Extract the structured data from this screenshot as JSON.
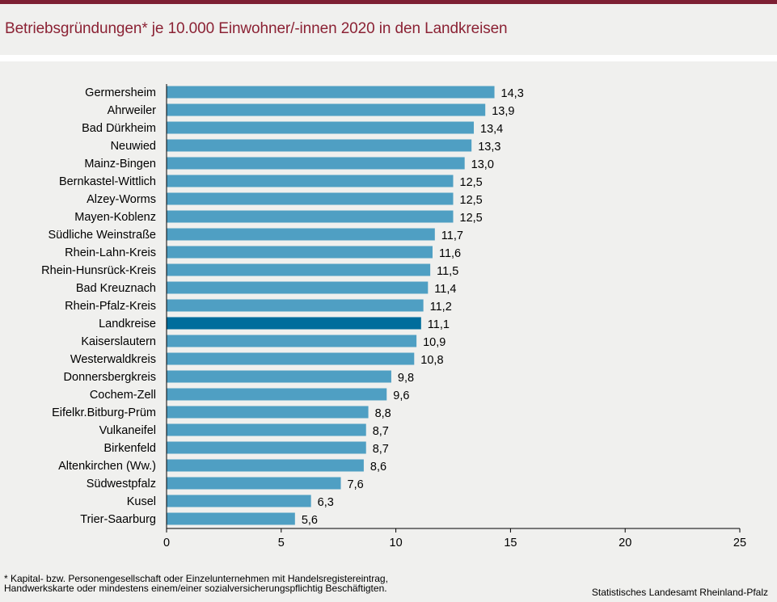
{
  "header": {
    "title": "Betriebsgründungen* je 10.000 Einwohner/-innen 2020  in den Landkreisen"
  },
  "footer": {
    "footnote": "* Kapital- bzw. Personengesellschaft  oder Einzelunternehmen  mit  Handelsregistereintrag,\nHandwerkskarte  oder mindestens einem/einer sozialversicherungspflichtig  Beschäftigten.",
    "source": "Statistisches Landesamt Rheinland-Pfalz"
  },
  "colors": {
    "bar": "#4f9fc3",
    "highlight_bar": "#006d9c",
    "title": "#8b2234",
    "topbar": "#7d1f33"
  },
  "chart_data": {
    "type": "bar",
    "orientation": "horizontal",
    "categories": [
      "Germersheim",
      "Ahrweiler",
      "Bad Dürkheim",
      "Neuwied",
      "Mainz-Bingen",
      "Bernkastel-Wittlich",
      "Alzey-Worms",
      "Mayen-Koblenz",
      "Südliche Weinstraße",
      "Rhein-Lahn-Kreis",
      "Rhein-Hunsrück-Kreis",
      "Bad Kreuznach",
      "Rhein-Pfalz-Kreis",
      "Landkreise",
      "Kaiserslautern",
      "Westerwaldkreis",
      "Donnersbergkreis",
      "Cochem-Zell",
      "Eifelkr.Bitburg-Prüm",
      "Vulkaneifel",
      "Birkenfeld",
      "Altenkirchen (Ww.)",
      "Südwestpfalz",
      "Kusel",
      "Trier-Saarburg"
    ],
    "values": [
      14.3,
      13.9,
      13.4,
      13.3,
      13.0,
      12.5,
      12.5,
      12.5,
      11.7,
      11.6,
      11.5,
      11.4,
      11.2,
      11.1,
      10.9,
      10.8,
      9.8,
      9.6,
      8.8,
      8.7,
      8.7,
      8.6,
      7.6,
      6.3,
      5.6
    ],
    "value_labels": [
      "14,3",
      "13,9",
      "13,4",
      "13,3",
      "13,0",
      "12,5",
      "12,5",
      "12,5",
      "11,7",
      "11,6",
      "11,5",
      "11,4",
      "11,2",
      "11,1",
      "10,9",
      "10,8",
      "9,8",
      "9,6",
      "8,8",
      "8,7",
      "8,7",
      "8,6",
      "7,6",
      "6,3",
      "5,6"
    ],
    "highlight_category": "Landkreise",
    "xlim": [
      0,
      25
    ],
    "xticks": [
      0,
      5,
      10,
      15,
      20,
      25
    ],
    "grid": false,
    "legend": false
  }
}
